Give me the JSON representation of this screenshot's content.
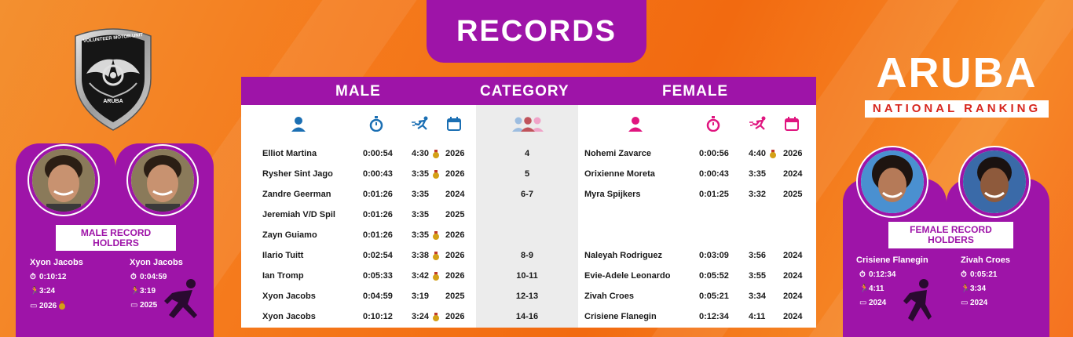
{
  "title": "RECORDS",
  "headers": {
    "male": "MALE",
    "category": "CATEGORY",
    "female": "FEMALE"
  },
  "brand": {
    "badge_top": "VOLUNTEER MOTOR UNIT",
    "badge_bottom": "ARUBA",
    "aruba": "ARUBA",
    "national_ranking": "NATIONAL RANKING"
  },
  "rows": [
    {
      "male_name": "Elliot Martina",
      "male_time": "0:00:54",
      "male_pace": "4:30",
      "male_medal": true,
      "male_year": "2026",
      "category": "4",
      "female_name": "Nohemi Zavarce",
      "female_time": "0:00:56",
      "female_pace": "4:40",
      "female_medal": true,
      "female_year": "2026"
    },
    {
      "male_name": "Rysher Sint Jago",
      "male_time": "0:00:43",
      "male_pace": "3:35",
      "male_medal": true,
      "male_year": "2026",
      "category": "5",
      "female_name": "Orixienne Moreta",
      "female_time": "0:00:43",
      "female_pace": "3:35",
      "female_medal": false,
      "female_year": "2024"
    },
    {
      "male_name": "Zandre Geerman",
      "male_time": "0:01:26",
      "male_pace": "3:35",
      "male_medal": false,
      "male_year": "2024",
      "category": "6-7",
      "female_name": "Myra Spijkers",
      "female_time": "0:01:25",
      "female_pace": "3:32",
      "female_medal": false,
      "female_year": "2025"
    },
    {
      "male_name": "Jeremiah V/D Spil",
      "male_time": "0:01:26",
      "male_pace": "3:35",
      "male_medal": false,
      "male_year": "2025",
      "category": "",
      "female_name": "",
      "female_time": "",
      "female_pace": "",
      "female_medal": false,
      "female_year": ""
    },
    {
      "male_name": "Zayn Guiamo",
      "male_time": "0:01:26",
      "male_pace": "3:35",
      "male_medal": true,
      "male_year": "2026",
      "category": "",
      "female_name": "",
      "female_time": "",
      "female_pace": "",
      "female_medal": false,
      "female_year": ""
    },
    {
      "male_name": "Ilario Tuitt",
      "male_time": "0:02:54",
      "male_pace": "3:38",
      "male_medal": true,
      "male_year": "2026",
      "category": "8-9",
      "female_name": "Naleyah Rodriguez",
      "female_time": "0:03:09",
      "female_pace": "3:56",
      "female_medal": false,
      "female_year": "2024"
    },
    {
      "male_name": "Ian Tromp",
      "male_time": "0:05:33",
      "male_pace": "3:42",
      "male_medal": true,
      "male_year": "2026",
      "category": "10-11",
      "female_name": "Evie-Adele Leonardo",
      "female_time": "0:05:52",
      "female_pace": "3:55",
      "female_medal": false,
      "female_year": "2024"
    },
    {
      "male_name": "Xyon Jacobs",
      "male_time": "0:04:59",
      "male_pace": "3:19",
      "male_medal": false,
      "male_year": "2025",
      "category": "12-13",
      "female_name": "Zivah Croes",
      "female_time": "0:05:21",
      "female_pace": "3:34",
      "female_medal": false,
      "female_year": "2024"
    },
    {
      "male_name": "Xyon Jacobs",
      "male_time": "0:10:12",
      "male_pace": "3:24",
      "male_medal": true,
      "male_year": "2026",
      "category": "14-16",
      "female_name": "Crisiene Flanegin",
      "female_time": "0:12:34",
      "female_pace": "4:11",
      "female_medal": false,
      "female_year": "2024"
    }
  ],
  "male_holders": {
    "label": "MALE RECORD HOLDERS",
    "cards": [
      {
        "name": "Xyon Jacobs",
        "time": "0:10:12",
        "pace": "3:24",
        "year": "2026",
        "medal": true
      },
      {
        "name": "Xyon Jacobs",
        "time": "0:04:59",
        "pace": "3:19",
        "year": "2025",
        "medal": false
      }
    ]
  },
  "female_holders": {
    "label": "FEMALE RECORD HOLDERS",
    "cards": [
      {
        "name": "Crisiene Flanegin",
        "time": "0:12:34",
        "pace": "4:11",
        "year": "2024"
      },
      {
        "name": "Zivah Croes",
        "time": "0:05:21",
        "pace": "3:34",
        "year": "2024"
      }
    ]
  },
  "icons": {
    "male_person": "person-icon",
    "stopwatch": "stopwatch-icon",
    "runner": "runner-icon",
    "calendar": "calendar-icon",
    "group": "group-icon",
    "medal": "medal-icon"
  },
  "colors": {
    "purple": "#9e14a8",
    "male_blue": "#1b6fb3",
    "female_pink": "#e0157f",
    "orange": "#f57a1c",
    "red": "#d7261e"
  }
}
